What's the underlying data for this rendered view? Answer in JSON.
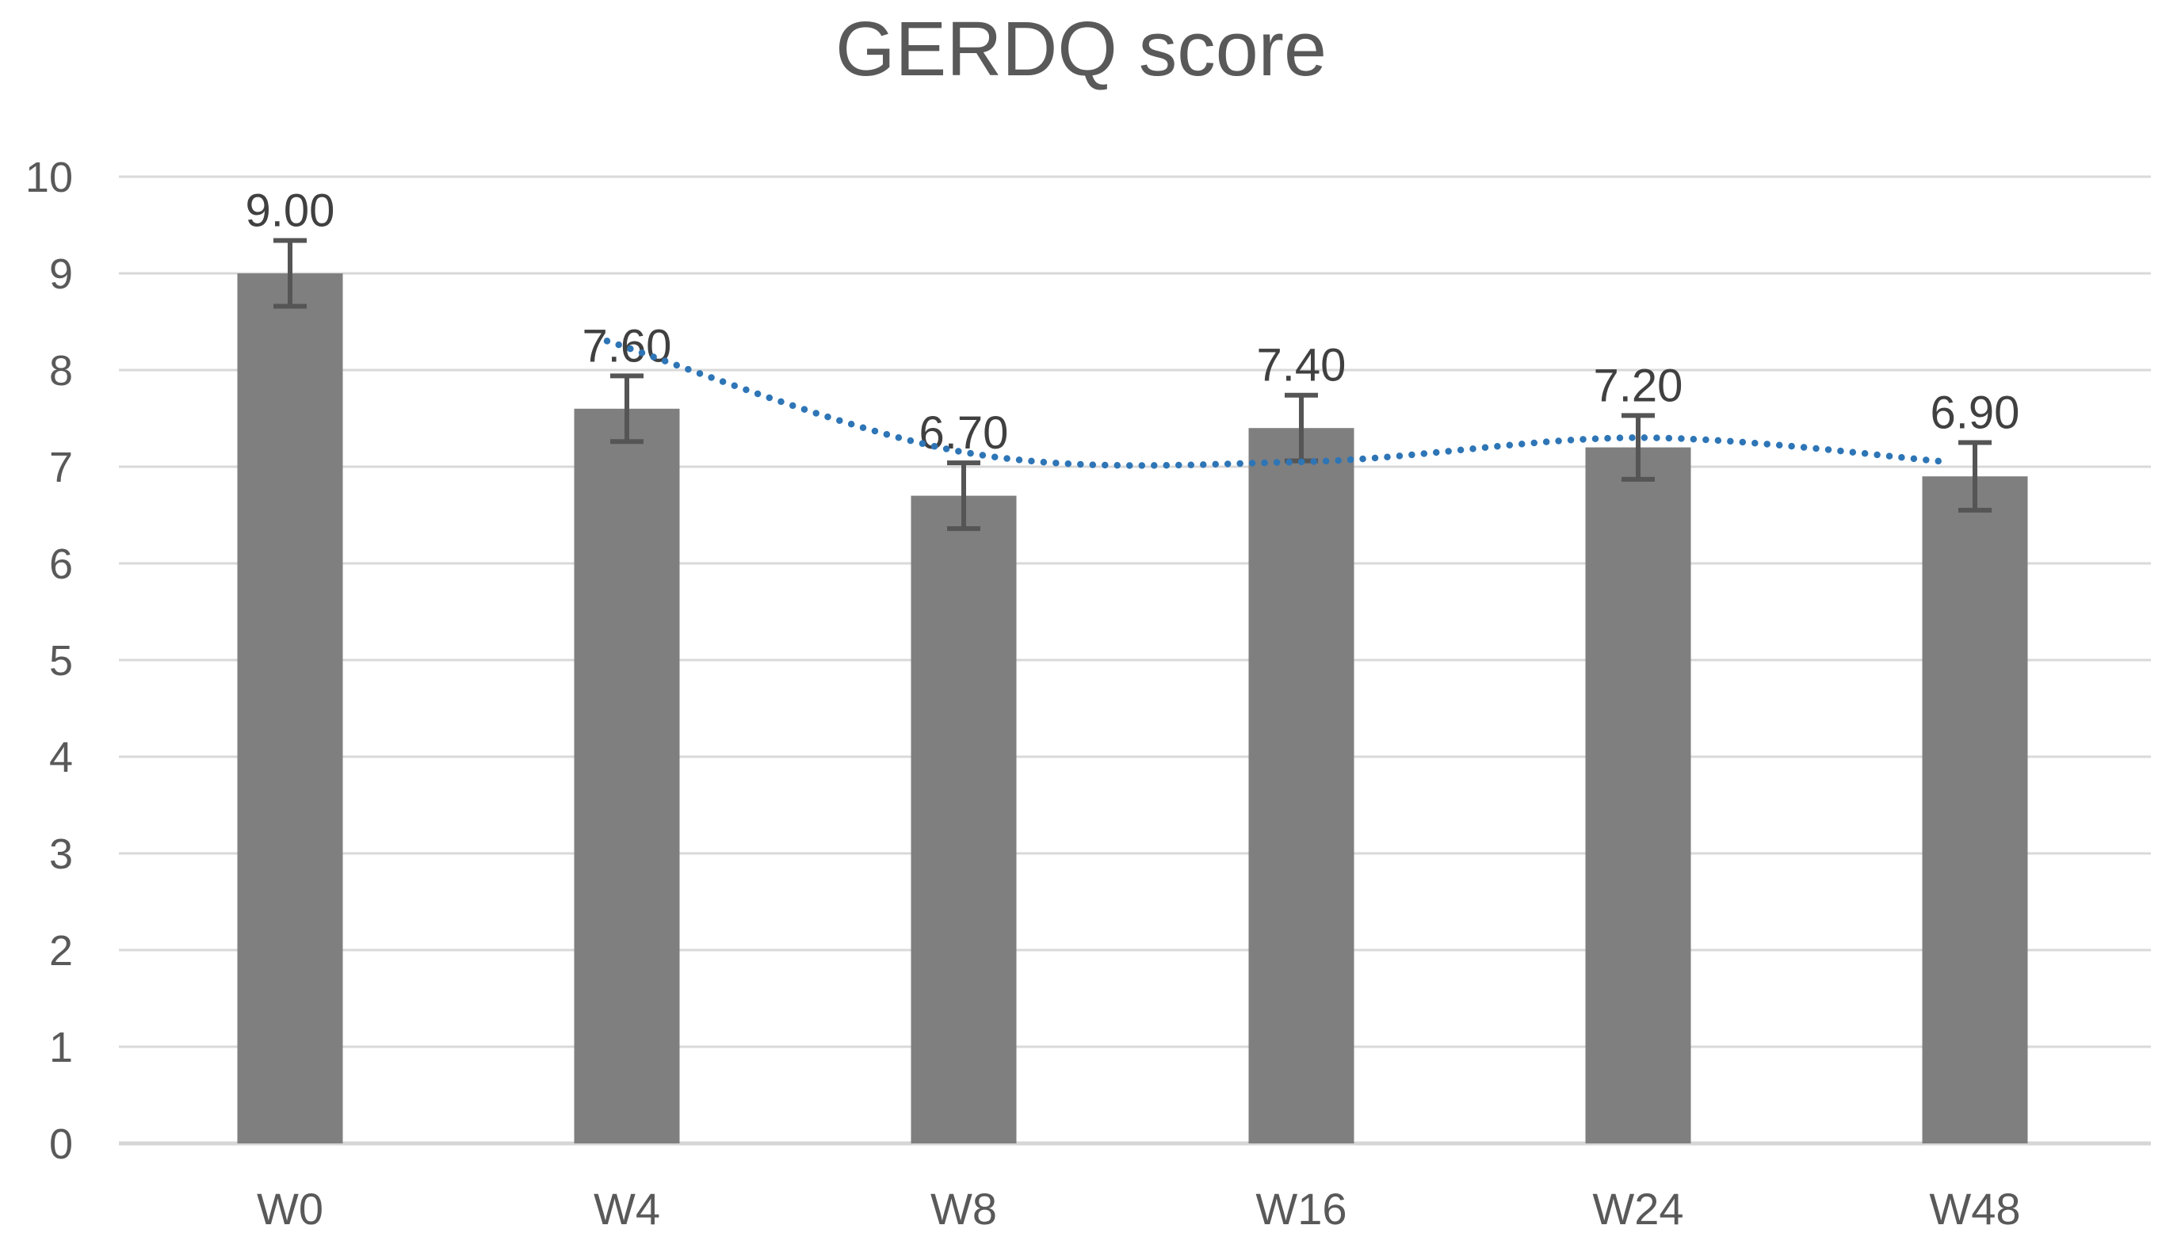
{
  "chart_data": {
    "type": "bar",
    "title": "GERDQ score",
    "categories": [
      "W0",
      "W4",
      "W8",
      "W16",
      "W24",
      "W48"
    ],
    "values": [
      9.0,
      7.6,
      6.7,
      7.4,
      7.2,
      6.9
    ],
    "data_labels": [
      "9.00",
      "7.60",
      "6.70",
      "7.40",
      "7.20",
      "6.90"
    ],
    "error_bars": [
      0.34,
      0.34,
      0.34,
      0.34,
      0.33,
      0.35
    ],
    "trendline": {
      "type": "moving-average-period-2",
      "style": "dotted",
      "categories": [
        "W4",
        "W8",
        "W16",
        "W24",
        "W48"
      ],
      "values": [
        8.3,
        7.15,
        7.05,
        7.3,
        7.05
      ]
    },
    "xlabel": "",
    "ylabel": "",
    "ylim": [
      0,
      10
    ],
    "yticks": [
      0,
      1,
      2,
      3,
      4,
      5,
      6,
      7,
      8,
      9,
      10
    ],
    "grid": true,
    "legend": "none",
    "colors": {
      "bar": "#7F7F7F",
      "error_bar": "#555555",
      "trendline": "#2E75B6",
      "gridline": "#D9D9D9",
      "axis_line": "#D6D6D6",
      "tick_label": "#595959",
      "data_label": "#404040",
      "title": "#595959"
    }
  }
}
